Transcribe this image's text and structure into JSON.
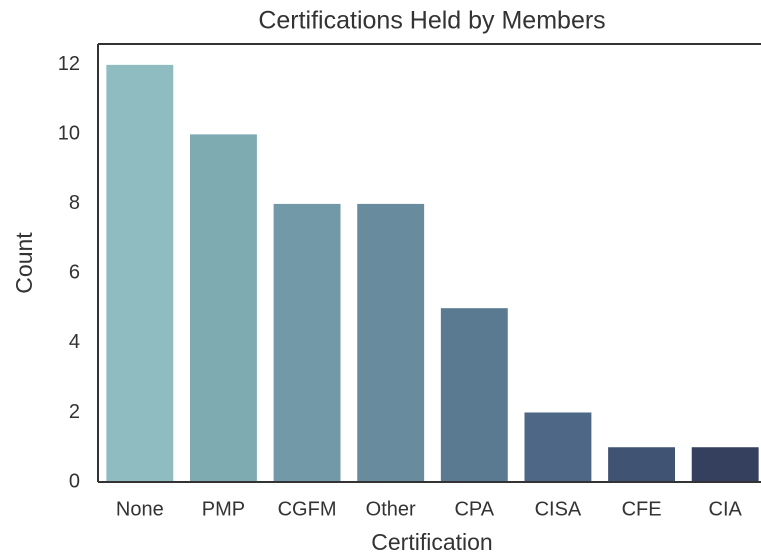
{
  "chart_data": {
    "type": "bar",
    "title": "Certifications Held by Members",
    "x_label": "Certification",
    "y_label": "Count",
    "categories": [
      "None",
      "PMP",
      "CGFM",
      "Other",
      "CPA",
      "CISA",
      "CFE",
      "CIA"
    ],
    "values": [
      12,
      10,
      8,
      8,
      5,
      2,
      1,
      1
    ],
    "colors": [
      "#8fbcc1",
      "#7eaab2",
      "#7199a7",
      "#688b9d",
      "#5a7a92",
      "#4e6786",
      "#415373",
      "#35405f"
    ],
    "ylim": [
      0,
      12.6
    ],
    "yticks": [
      0,
      2,
      4,
      6,
      8,
      10,
      12
    ],
    "grid": false
  }
}
